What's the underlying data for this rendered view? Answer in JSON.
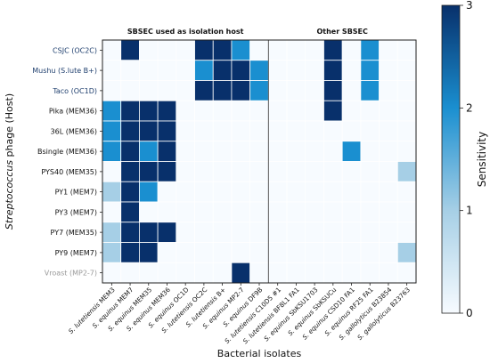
{
  "chart_data": {
    "type": "heatmap",
    "xlabel": "Bacterial isolates",
    "ylabel_italic": "Streptococcus",
    "ylabel_rest": " phage (Host)",
    "colorbar_label": "Sensitivity",
    "colorbar_ticks": [
      0,
      1,
      2,
      3
    ],
    "value_range": [
      0,
      3
    ],
    "group_titles": [
      {
        "label": "SBSEC used as isolation host",
        "col_start": 0,
        "col_end": 8
      },
      {
        "label": "Other SBSEC",
        "col_start": 9,
        "col_end": 16
      }
    ],
    "separator_after_col": 8,
    "columns": [
      {
        "genus": "S. lutetiensis",
        "strain": "MEM3"
      },
      {
        "genus": "S. equinus",
        "strain": "MEM7"
      },
      {
        "genus": "S. equinus",
        "strain": "MEM35"
      },
      {
        "genus": "S. equinus",
        "strain": "MEM36"
      },
      {
        "genus": "S. equinus",
        "strain": "OC1D"
      },
      {
        "genus": "S. lutetiensis",
        "strain": "OC2C"
      },
      {
        "genus": "S. lutetiensis",
        "strain": "B+"
      },
      {
        "genus": "S. equinus",
        "strain": "MP2-7"
      },
      {
        "genus": "S. equinus",
        "strain": "DF9B"
      },
      {
        "genus": "S. lutetiensis",
        "strain": "C10D5 #1"
      },
      {
        "genus": "S. lutetiensis",
        "strain": "BF8L1 FA1"
      },
      {
        "genus": "S. equinus",
        "strain": "SbKSU1703"
      },
      {
        "genus": "S. equinus",
        "strain": "SbKSUCu"
      },
      {
        "genus": "S. equinus",
        "strain": "CSD10 FA1"
      },
      {
        "genus": "S. equinus",
        "strain": "RF25 FA1"
      },
      {
        "genus": "S. gallolyticus",
        "strain": "B23854"
      },
      {
        "genus": "S. gallolyticus",
        "strain": "B23763"
      }
    ],
    "rows": [
      {
        "label": "CSJC (OC2C)",
        "color": "#1f3f6e",
        "values": [
          0,
          3,
          0,
          0,
          0,
          3,
          3,
          2,
          0,
          0,
          0,
          0,
          3,
          0,
          2,
          0,
          0
        ]
      },
      {
        "label": "Mushu (S.lute B+)",
        "color": "#1f3f6e",
        "values": [
          0,
          0,
          0,
          0,
          0,
          2,
          3,
          3,
          2,
          0,
          0,
          0,
          3,
          0,
          2,
          0,
          0
        ]
      },
      {
        "label": "Taco (OC1D)",
        "color": "#1f3f6e",
        "values": [
          0,
          0,
          0,
          0,
          0,
          3,
          3,
          3,
          2,
          0,
          0,
          0,
          3,
          0,
          2,
          0,
          0
        ]
      },
      {
        "label": "Pika (MEM36)",
        "color": "#111111",
        "values": [
          2,
          3,
          3,
          3,
          0,
          0,
          0,
          0,
          0,
          0,
          0,
          0,
          3,
          0,
          0,
          0,
          0
        ]
      },
      {
        "label": "36L (MEM36)",
        "color": "#111111",
        "values": [
          2,
          3,
          3,
          3,
          0,
          0,
          0,
          0,
          0,
          0,
          0,
          0,
          0,
          0,
          0,
          0,
          0
        ]
      },
      {
        "label": "Bsingle (MEM36)",
        "color": "#111111",
        "values": [
          2,
          3,
          2,
          3,
          0,
          0,
          0,
          0,
          0,
          0,
          0,
          0,
          0,
          2,
          0,
          0,
          0
        ]
      },
      {
        "label": "PYS40 (MEM35)",
        "color": "#111111",
        "values": [
          0,
          3,
          3,
          3,
          0,
          0,
          0,
          0,
          0,
          0,
          0,
          0,
          0,
          0,
          0,
          0,
          1
        ]
      },
      {
        "label": "PY1 (MEM7)",
        "color": "#111111",
        "values": [
          1,
          3,
          2,
          0,
          0,
          0,
          0,
          0,
          0,
          0,
          0,
          0,
          0,
          0,
          0,
          0,
          0
        ]
      },
      {
        "label": "PY3 (MEM7)",
        "color": "#111111",
        "values": [
          0,
          3,
          0,
          0,
          0,
          0,
          0,
          0,
          0,
          0,
          0,
          0,
          0,
          0,
          0,
          0,
          0
        ]
      },
      {
        "label": "PY7 (MEM35)",
        "color": "#111111",
        "values": [
          1,
          3,
          3,
          3,
          0,
          0,
          0,
          0,
          0,
          0,
          0,
          0,
          0,
          0,
          0,
          0,
          0
        ]
      },
      {
        "label": "PY9 (MEM7)",
        "color": "#111111",
        "values": [
          1,
          3,
          3,
          0,
          0,
          0,
          0,
          0,
          0,
          0,
          0,
          0,
          0,
          0,
          0,
          0,
          1
        ]
      },
      {
        "label": "Vroast (MP2-7)",
        "color": "#9a9a9a",
        "values": [
          0,
          0,
          0,
          0,
          0,
          0,
          0,
          3,
          0,
          0,
          0,
          0,
          0,
          0,
          0,
          0,
          0
        ]
      }
    ],
    "colors": [
      "#f7fbff",
      "#a6cfe6",
      "#1a8fd0",
      "#08306b"
    ]
  }
}
